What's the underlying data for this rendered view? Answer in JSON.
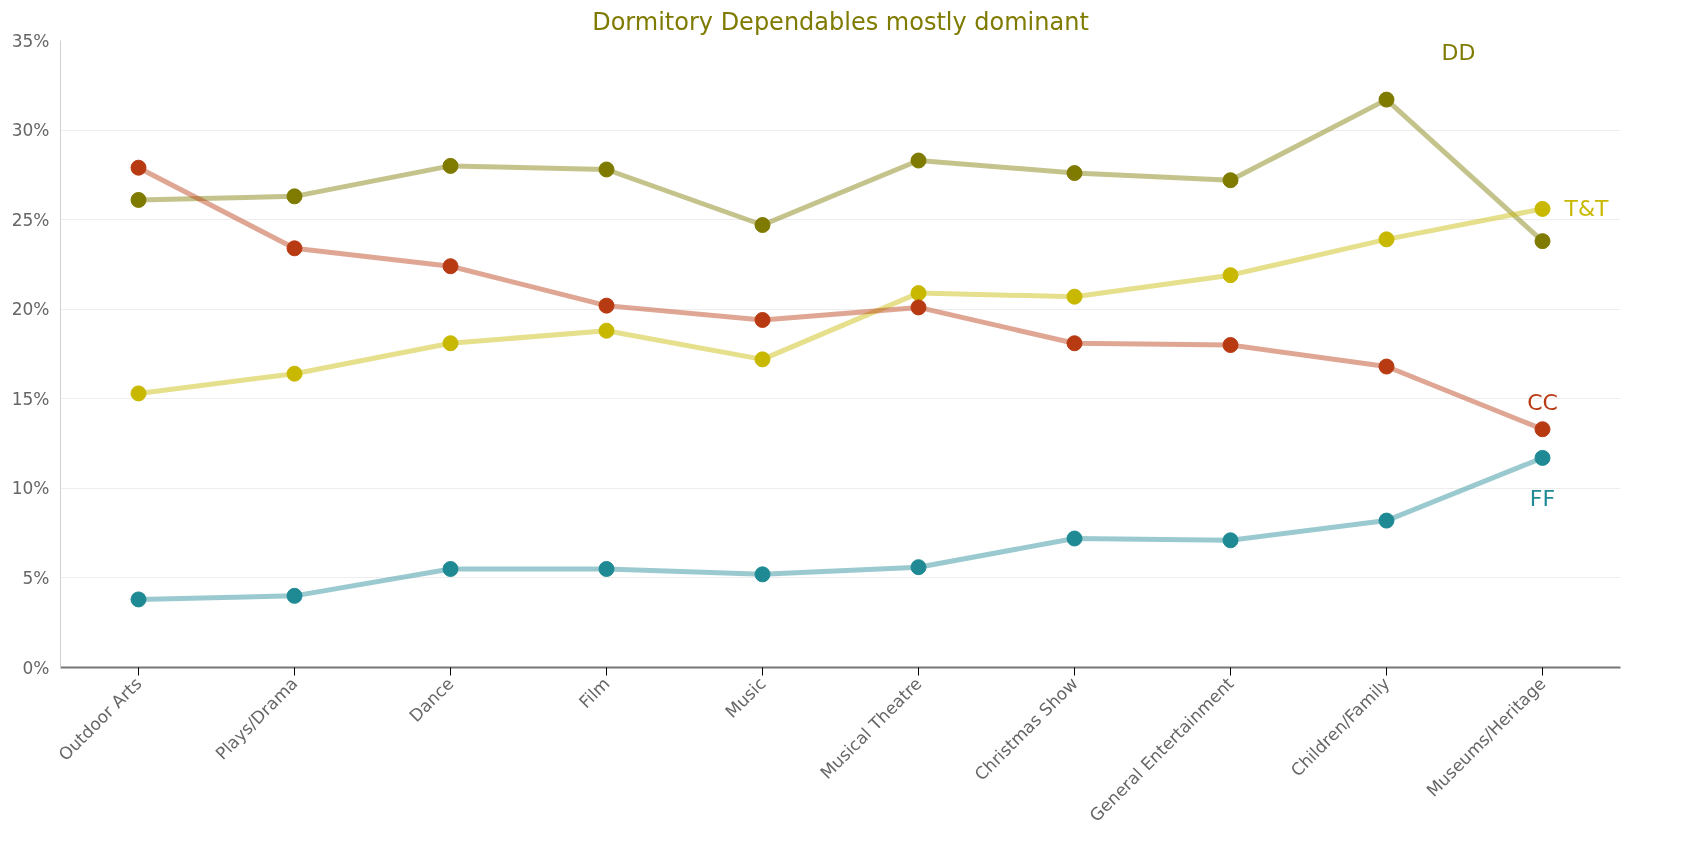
{
  "chart_data": {
    "type": "line",
    "title": "Dormitory Dependables mostly dominant",
    "categories": [
      "Outdoor Arts",
      "Plays/Drama",
      "Dance",
      "Film",
      "Music",
      "Musical Theatre",
      "Christmas Show",
      "General Entertainment",
      "Children/Family",
      "Museums/Heritage"
    ],
    "series": [
      {
        "name": "DD",
        "color": "#7f7a00",
        "values": [
          26.1,
          26.3,
          28.0,
          27.8,
          24.7,
          28.3,
          27.6,
          27.2,
          31.7,
          23.8
        ]
      },
      {
        "name": "T&T",
        "color": "#c8b900",
        "values": [
          15.3,
          16.4,
          18.1,
          18.8,
          17.2,
          20.9,
          20.7,
          21.9,
          23.9,
          25.6
        ]
      },
      {
        "name": "CC",
        "color": "#b83a12",
        "values": [
          27.9,
          23.4,
          22.4,
          20.2,
          19.4,
          20.1,
          18.1,
          18.0,
          16.8,
          13.3
        ]
      },
      {
        "name": "FF",
        "color": "#1f8a94",
        "values": [
          3.8,
          4.0,
          5.5,
          5.5,
          5.2,
          5.6,
          7.2,
          7.1,
          8.2,
          11.7
        ]
      }
    ],
    "ylim": [
      0,
      35
    ],
    "yticks": [
      {
        "value": 0,
        "label": "0%"
      },
      {
        "value": 5,
        "label": "5%"
      },
      {
        "value": 10,
        "label": "10%"
      },
      {
        "value": 15,
        "label": "15%"
      },
      {
        "value": 20,
        "label": "20%"
      },
      {
        "value": 25,
        "label": "25%"
      },
      {
        "value": 30,
        "label": "30%"
      },
      {
        "value": 35,
        "label": "35%"
      }
    ],
    "grid": "y",
    "marker": "circle",
    "line_style": "solid"
  }
}
